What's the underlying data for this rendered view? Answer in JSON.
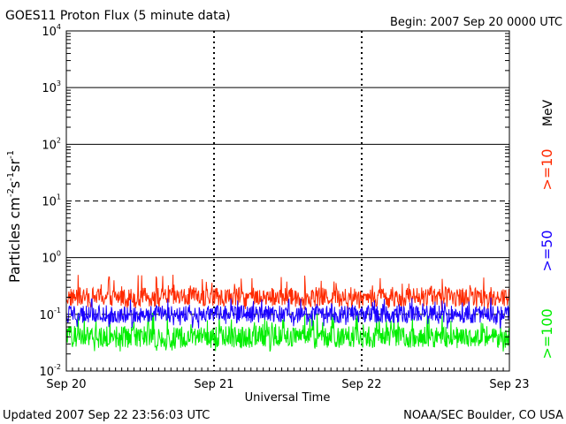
{
  "header": {
    "title": "GOES11 Proton Flux (5 minute data)",
    "begin": "Begin: 2007 Sep 20 0000 UTC"
  },
  "footer": {
    "updated": "Updated 2007 Sep 22 23:56:03 UTC",
    "credit": "NOAA/SEC Boulder, CO USA"
  },
  "chart_data": {
    "type": "line",
    "title": "GOES11 Proton Flux (5 minute data)",
    "xlabel": "Universal Time",
    "ylabel_parts": {
      "base": "Particles cm",
      "e1": "-2",
      "s": "s",
      "e2": "-1",
      "sr": "sr",
      "e3": "-1"
    },
    "y_scale": "log",
    "ylim": [
      0.01,
      10000
    ],
    "y_ticks": [
      {
        "exp": 4,
        "base": "10",
        "sup": "4"
      },
      {
        "exp": 3,
        "base": "10",
        "sup": "3"
      },
      {
        "exp": 2,
        "base": "10",
        "sup": "2"
      },
      {
        "exp": 1,
        "base": "10",
        "sup": "1"
      },
      {
        "exp": 0,
        "base": "10",
        "sup": "0"
      },
      {
        "exp": -1,
        "base": "10",
        "sup": "-1"
      },
      {
        "exp": -2,
        "base": "10",
        "sup": "-2"
      }
    ],
    "x_ticks": [
      "Sep 20",
      "Sep 21",
      "Sep 22",
      "Sep 23"
    ],
    "x_range_days": [
      0,
      3
    ],
    "units_label": "MeV",
    "series": [
      {
        "name": ">=10",
        "color": "#ff2a00",
        "typical_flux": 0.2,
        "min_flux": 0.12,
        "max_flux": 0.5
      },
      {
        "name": ">=50",
        "color": "#1a00ff",
        "typical_flux": 0.1,
        "min_flux": 0.055,
        "max_flux": 0.2
      },
      {
        "name": ">=100",
        "color": "#00ee00",
        "typical_flux": 0.04,
        "min_flux": 0.022,
        "max_flux": 0.11
      }
    ],
    "grid": {
      "solid_decades": [
        4,
        3,
        2,
        0
      ],
      "dashed_decades": [
        1,
        -1
      ],
      "day_dividers": "dashed"
    }
  }
}
